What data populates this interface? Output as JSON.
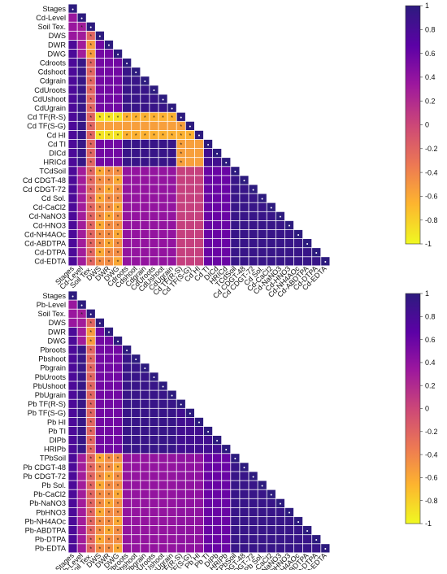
{
  "chart_data": [
    {
      "type": "heatmap",
      "shape": "lower-triangular",
      "labels": [
        "Stages",
        "Cd-Level",
        "Soil Tex.",
        "DWS",
        "DWR",
        "DWG",
        "Cdroots",
        "Cdshoot",
        "Cdgrain",
        "CdUroots",
        "CdUshoot",
        "CdUgrain",
        "Cd TF(R-S)",
        "Cd TF(S-G)",
        "Cd HI",
        "Cd TI",
        "DICd",
        "HRICd",
        "TCdSoil",
        "Cd CDGT-48",
        "Cd CDGT-72",
        "Cd Sol.",
        "Cd-CaCl2",
        "Cd-NaNO3",
        "Cd-HNO3",
        "Cd-NH4AOc",
        "Cd-ABDTPA",
        "Cd-DTPA",
        "Cd-EDTA"
      ],
      "colorbar": {
        "min": -1,
        "max": 1,
        "ticks": [
          "1",
          "0.8",
          "0.6",
          "0.4",
          "0.2",
          "0",
          "-0.2",
          "-0.4",
          "-0.6",
          "-0.8",
          "-1"
        ]
      },
      "colorscale": [
        "#f0f921",
        "#fdb42f",
        "#ed7953",
        "#cc4778",
        "#9c179e",
        "#5c01a6",
        "#2d1b7e"
      ],
      "significance_marker": "*",
      "grid": false,
      "legend_position": "right"
    },
    {
      "type": "heatmap",
      "shape": "lower-triangular",
      "labels": [
        "Stages",
        "Pb-Level",
        "Soil Tex.",
        "DWS",
        "DWR",
        "DWG",
        "Pbroots",
        "Pbshoot",
        "Pbgrain",
        "PbUroots",
        "PbUshoot",
        "PbUgrain",
        "Pb TF(R-S)",
        "Pb TF(S-G)",
        "Pb HI",
        "Pb TI",
        "DIPb",
        "HRIPb",
        "TPbSoil",
        "Pb CDGT-48",
        "Pb CDGT-72",
        "Pb Sol.",
        "Pb-CaCl2",
        "Pb-NaNO3",
        "PbHNO3",
        "Pb-NH4AOc",
        "Pb-ABDTPA",
        "Pb-DTPA",
        "Pb-EDTA"
      ],
      "colorbar": {
        "min": -1,
        "max": 1,
        "ticks": [
          "1",
          "0.8",
          "0.6",
          "0.4",
          "0.2",
          "0",
          "-0.2",
          "-0.4",
          "-0.6",
          "-0.8",
          "-1"
        ]
      },
      "colorscale": [
        "#f0f921",
        "#fdb42f",
        "#ed7953",
        "#cc4778",
        "#9c179e",
        "#5c01a6",
        "#2d1b7e"
      ],
      "significance_marker": "*",
      "grid": false,
      "legend_position": "right"
    }
  ]
}
